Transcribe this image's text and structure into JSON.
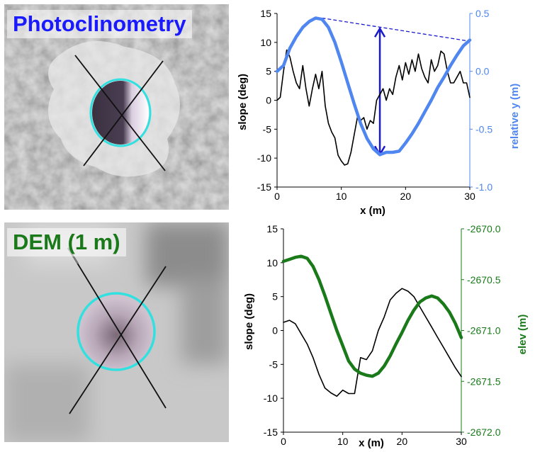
{
  "images": {
    "top_label": "Photoclinometry",
    "bottom_label": "DEM (1 m)",
    "top_color": "#1a1aff",
    "bottom_color": "#1a7a1a",
    "circle_color": "#33e0e0"
  },
  "chart_data": [
    {
      "type": "line",
      "xlabel": "x (m)",
      "ylabel": "slope (deg)",
      "y2label": "relative y (m)",
      "xlim": [
        0,
        30
      ],
      "xticks": [
        "0",
        "10",
        "20",
        "30"
      ],
      "ylim": [
        -15,
        15
      ],
      "yticks": [
        "-15",
        "-10",
        "-5",
        "0",
        "5",
        "10",
        "15"
      ],
      "y2lim": [
        -1.0,
        0.5
      ],
      "y2ticks": [
        "-1.0",
        "-0.5",
        "0.0",
        "0.5"
      ],
      "y2color": "#4f86f0",
      "series": [
        {
          "axis": "left",
          "color": "#000000",
          "x": [
            0,
            0.5,
            1,
            1.5,
            2,
            2.5,
            3,
            3.5,
            4,
            4.5,
            5,
            5.5,
            6,
            6.5,
            7,
            7.5,
            8,
            8.5,
            9,
            9.5,
            10,
            10.5,
            11,
            11.5,
            12,
            12.5,
            13,
            13.5,
            14,
            14.5,
            15,
            15.5,
            16,
            16.5,
            17,
            17.5,
            18,
            18.5,
            19,
            19.5,
            20,
            20.5,
            21,
            21.5,
            22,
            22.5,
            23,
            23.5,
            24,
            24.5,
            25,
            25.5,
            26,
            26.5,
            27,
            27.5,
            28,
            28.5,
            29,
            29.5,
            30
          ],
          "values": [
            0,
            0.5,
            5,
            8.7,
            7.5,
            5,
            3,
            2,
            6,
            2,
            -1,
            2,
            4.5,
            2,
            5,
            -1,
            -4,
            -5.5,
            -6.5,
            -9.5,
            -10.5,
            -11.2,
            -11,
            -9,
            -6,
            -3,
            -3.5,
            -3,
            -5,
            -3.5,
            -4,
            0,
            1,
            2,
            0,
            2,
            1,
            4,
            6,
            3.5,
            6.5,
            4.5,
            7,
            5,
            8,
            5.5,
            4,
            3,
            7,
            5,
            6,
            8.5,
            8,
            5,
            3,
            3,
            4,
            5,
            3,
            3,
            0.5
          ]
        },
        {
          "axis": "right",
          "color": "#4f86f0",
          "x": [
            0,
            1,
            2,
            3,
            4,
            5,
            6,
            7,
            8,
            9,
            10,
            11,
            12,
            13,
            14,
            15,
            16,
            17,
            18,
            19,
            20,
            21,
            22,
            23,
            24,
            25,
            26,
            27,
            28,
            29,
            30
          ],
          "values": [
            0.0,
            0.05,
            0.2,
            0.3,
            0.38,
            0.43,
            0.46,
            0.45,
            0.38,
            0.25,
            0.08,
            -0.1,
            -0.28,
            -0.45,
            -0.58,
            -0.67,
            -0.72,
            -0.7,
            -0.7,
            -0.69,
            -0.62,
            -0.54,
            -0.45,
            -0.35,
            -0.25,
            -0.14,
            -0.05,
            0.05,
            0.14,
            0.22,
            0.27
          ]
        }
      ],
      "annotations": {
        "dashed_line": {
          "x": [
            7,
            30
          ],
          "y2": [
            0.46,
            0.26
          ]
        },
        "double_arrow": {
          "x": 16,
          "y2": [
            -0.72,
            0.37
          ]
        }
      }
    },
    {
      "type": "line",
      "xlabel": "x (m)",
      "ylabel": "slope (deg)",
      "y2label": "elev (m)",
      "xlim": [
        0,
        30
      ],
      "xticks": [
        "0",
        "10",
        "20",
        "30"
      ],
      "ylim": [
        -15,
        15
      ],
      "yticks": [
        "-15",
        "-10",
        "-5",
        "0",
        "5",
        "10",
        "15"
      ],
      "y2lim": [
        -2672.0,
        -2670.0
      ],
      "y2ticks": [
        "-2670.0",
        "-2670.5",
        "-2671.0",
        "-2671.5",
        "-2672.0"
      ],
      "y2color": "#1a7a1a",
      "series": [
        {
          "axis": "left",
          "color": "#000000",
          "x": [
            0,
            1,
            2,
            3,
            4,
            5,
            6,
            7,
            8,
            9,
            10,
            11,
            12,
            13,
            14,
            15,
            16,
            17,
            18,
            19,
            20,
            21,
            22,
            23,
            24,
            25,
            26,
            27,
            28,
            29,
            30
          ],
          "values": [
            1.2,
            1.5,
            1,
            -0.5,
            -2,
            -4,
            -6.5,
            -8.5,
            -9.2,
            -9.7,
            -8.8,
            -9.3,
            -9.3,
            -4,
            -4.3,
            -3,
            0,
            2,
            4.5,
            5.5,
            6.2,
            5.8,
            5,
            3.5,
            2,
            0.5,
            -1,
            -2.5,
            -4,
            -5.5,
            -6.8
          ]
        },
        {
          "axis": "right",
          "color": "#1a7a1a",
          "x": [
            0,
            1,
            2,
            3,
            4,
            5,
            6,
            7,
            8,
            9,
            10,
            11,
            12,
            13,
            14,
            15,
            16,
            17,
            18,
            19,
            20,
            21,
            22,
            23,
            24,
            25,
            26,
            27,
            28,
            29,
            30
          ],
          "values": [
            -2670.32,
            -2670.3,
            -2670.28,
            -2670.27,
            -2670.29,
            -2670.37,
            -2670.5,
            -2670.66,
            -2670.83,
            -2671.0,
            -2671.15,
            -2671.3,
            -2671.38,
            -2671.42,
            -2671.44,
            -2671.45,
            -2671.42,
            -2671.35,
            -2671.25,
            -2671.13,
            -2671.02,
            -2670.9,
            -2670.8,
            -2670.72,
            -2670.68,
            -2670.66,
            -2670.68,
            -2670.74,
            -2670.82,
            -2670.93,
            -2671.07
          ]
        }
      ]
    }
  ]
}
